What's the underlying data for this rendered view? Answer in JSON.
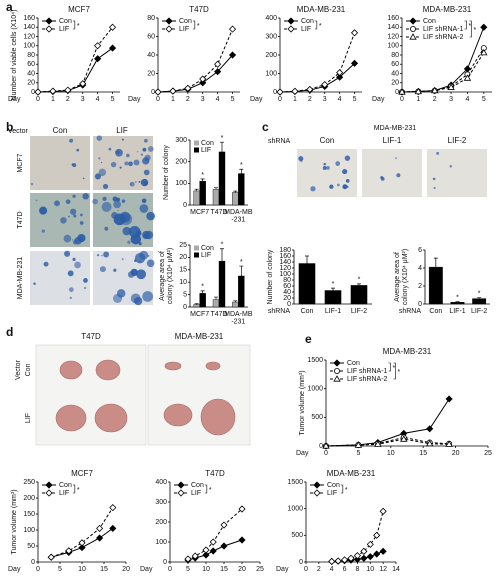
{
  "panel_labels": [
    "a",
    "b",
    "c",
    "d",
    "e"
  ],
  "photos_b": {
    "row_header": "Vector",
    "columns": [
      "Con",
      "LIF"
    ],
    "rows": [
      "MCF7",
      "T47D",
      "MDA-MB-231"
    ]
  },
  "photos_c": {
    "title": "MDA-MB-231",
    "row_header": "shRNA",
    "columns": [
      "Con",
      "LIF-1",
      "LIF-2"
    ]
  },
  "photos_d": {
    "columns": [
      "T47D",
      "MDA-MB-231"
    ],
    "group": "Vector",
    "rows": [
      "Con",
      "LIF"
    ]
  },
  "chart_data": [
    {
      "type": "line",
      "title": "MCF7",
      "y_label": "Number of viable cells (X10⁴)",
      "x_label": "Day",
      "x": [
        0,
        1,
        2,
        3,
        4,
        5
      ],
      "xlim": [
        0,
        5.5
      ],
      "xticks": [
        0,
        1,
        2,
        3,
        4,
        5
      ],
      "ylim": [
        0,
        160
      ],
      "yticks": [
        0,
        20,
        40,
        60,
        80,
        100,
        120,
        140,
        160
      ],
      "significance": [
        "*"
      ],
      "series": [
        {
          "name": "Con",
          "color": "#000000",
          "marker": "filled-diamond",
          "dashed": false,
          "values": [
            0,
            1,
            3,
            15,
            72,
            95
          ]
        },
        {
          "name": "LIF",
          "color": "#000000",
          "marker": "open-diamond",
          "dashed": true,
          "values": [
            0,
            2,
            4,
            18,
            100,
            140
          ]
        }
      ]
    },
    {
      "type": "line",
      "title": "T47D",
      "x_label": "Day",
      "x": [
        0,
        1,
        2,
        3,
        4,
        5
      ],
      "xlim": [
        0,
        5.5
      ],
      "xticks": [
        0,
        1,
        2,
        3,
        4,
        5
      ],
      "ylim": [
        0,
        80
      ],
      "yticks": [
        0,
        20,
        40,
        60,
        80
      ],
      "significance": [
        "*"
      ],
      "series": [
        {
          "name": "Con",
          "color": "#000000",
          "marker": "filled-diamond",
          "dashed": false,
          "values": [
            0,
            1,
            3,
            10,
            22,
            40
          ]
        },
        {
          "name": "LIF",
          "color": "#000000",
          "marker": "open-diamond",
          "dashed": true,
          "values": [
            0,
            1,
            4,
            14,
            30,
            68
          ]
        }
      ]
    },
    {
      "type": "line",
      "title": "MDA-MB-231",
      "x_label": "Day",
      "x": [
        0,
        1,
        2,
        3,
        4,
        5
      ],
      "xlim": [
        0,
        5.5
      ],
      "xticks": [
        0,
        1,
        2,
        3,
        4,
        5
      ],
      "ylim": [
        0,
        400
      ],
      "yticks": [
        0,
        100,
        200,
        300,
        400
      ],
      "significance": [
        "*"
      ],
      "series": [
        {
          "name": "Con",
          "color": "#000000",
          "marker": "filled-diamond",
          "dashed": false,
          "values": [
            0,
            3,
            10,
            30,
            80,
            155
          ]
        },
        {
          "name": "LIF",
          "color": "#000000",
          "marker": "open-diamond",
          "dashed": true,
          "values": [
            0,
            4,
            14,
            40,
            105,
            320
          ]
        }
      ]
    },
    {
      "type": "line",
      "title": "MDA-MB-231",
      "x_label": "Day",
      "x": [
        0,
        1,
        2,
        3,
        4,
        5
      ],
      "xlim": [
        0,
        5.5
      ],
      "xticks": [
        0,
        1,
        2,
        3,
        4,
        5
      ],
      "ylim": [
        0,
        160
      ],
      "yticks": [
        0,
        20,
        40,
        60,
        80,
        100,
        120,
        140,
        160
      ],
      "significance": [
        "*",
        "*"
      ],
      "series": [
        {
          "name": "Con",
          "color": "#000000",
          "marker": "filled-diamond",
          "dashed": false,
          "values": [
            0,
            1,
            3,
            15,
            50,
            140
          ]
        },
        {
          "name": "LIF shRNA-1",
          "color": "#000000",
          "marker": "open-circle",
          "dashed": true,
          "values": [
            0,
            1,
            3,
            12,
            38,
            95
          ]
        },
        {
          "name": "LIF shRNA-2",
          "color": "#000000",
          "marker": "open-triangle",
          "dashed": true,
          "values": [
            0,
            1,
            3,
            10,
            30,
            85
          ]
        }
      ]
    },
    {
      "type": "bar",
      "y_label": "Number of colony",
      "categories": [
        "MCF7",
        "T47D",
        "MDA-MB\n-231"
      ],
      "ylim": [
        0,
        300
      ],
      "yticks": [
        0,
        100,
        200,
        300
      ],
      "series": [
        {
          "name": "Con",
          "color": "#aaaaaa",
          "values": [
            65,
            72,
            58
          ],
          "errors": [
            8,
            8,
            6
          ]
        },
        {
          "name": "LIF",
          "color": "#000000",
          "values": [
            110,
            245,
            145
          ],
          "errors": [
            10,
            45,
            20
          ],
          "star_labels": [
            "*",
            "*",
            "*"
          ]
        }
      ]
    },
    {
      "type": "bar",
      "y_label": "Average area of\ncolony (X10⁴ μM²)",
      "categories": [
        "MCF7",
        "T47D",
        "MDA-MB\n-231"
      ],
      "ylim": [
        0,
        25
      ],
      "yticks": [
        0,
        5,
        10,
        15,
        20,
        25
      ],
      "series": [
        {
          "name": "Con",
          "color": "#aaaaaa",
          "values": [
            1,
            3,
            2
          ],
          "errors": [
            0.3,
            1,
            0.5
          ]
        },
        {
          "name": "LIF",
          "color": "#000000",
          "values": [
            5.5,
            18.5,
            12.5
          ],
          "errors": [
            1,
            5,
            4
          ],
          "star_labels": [
            "*",
            "*",
            "*"
          ]
        }
      ]
    },
    {
      "type": "bar",
      "y_label": "Number of colony",
      "x_label": "shRNA",
      "categories": [
        "Con",
        "LIF-1",
        "LIF-2"
      ],
      "ylim": [
        0,
        180
      ],
      "yticks": [
        0,
        20,
        40,
        60,
        80,
        100,
        120,
        140,
        160,
        180
      ],
      "series": [
        {
          "color": "#000000",
          "values": [
            135,
            45,
            62
          ],
          "errors": [
            25,
            8,
            5
          ],
          "star_labels": [
            null,
            "*",
            "*"
          ]
        }
      ]
    },
    {
      "type": "bar",
      "y_label": "Average area of\ncolony (X10⁴ μM²)",
      "x_label": "shRNA",
      "categories": [
        "Con",
        "LIF-1",
        "LIF-2"
      ],
      "ylim": [
        0,
        6
      ],
      "yticks": [
        0,
        2,
        4,
        6
      ],
      "series": [
        {
          "color": "#000000",
          "values": [
            4.1,
            0.2,
            0.6
          ],
          "errors": [
            1,
            0.05,
            0.1
          ],
          "star_labels": [
            null,
            "*",
            "*"
          ]
        }
      ]
    },
    {
      "type": "line",
      "title": "MCF7",
      "y_label": "Tumor volume (mm³)",
      "x_label": "Day",
      "x": [
        3,
        7,
        10,
        14,
        17
      ],
      "xlim": [
        0,
        20
      ],
      "xticks": [
        0,
        5,
        10,
        15,
        20
      ],
      "ylim": [
        0,
        250
      ],
      "yticks": [
        0,
        50,
        100,
        150,
        200,
        250
      ],
      "significance": [
        "*"
      ],
      "series": [
        {
          "name": "Con",
          "color": "#000000",
          "marker": "filled-diamond",
          "dashed": false,
          "values": [
            15,
            30,
            45,
            75,
            105
          ]
        },
        {
          "name": "LIF",
          "color": "#000000",
          "marker": "open-diamond",
          "dashed": true,
          "values": [
            15,
            35,
            60,
            105,
            170
          ]
        }
      ]
    },
    {
      "type": "line",
      "title": "T47D",
      "x_label": "Day",
      "x": [
        5,
        7,
        10,
        12,
        15,
        20
      ],
      "xlim": [
        0,
        25
      ],
      "xticks": [
        0,
        5,
        10,
        15,
        20,
        25
      ],
      "ylim": [
        0,
        400
      ],
      "yticks": [
        0,
        100,
        200,
        300,
        400
      ],
      "significance": [
        "*"
      ],
      "series": [
        {
          "name": "Con",
          "color": "#000000",
          "marker": "filled-diamond",
          "dashed": false,
          "values": [
            10,
            20,
            35,
            55,
            80,
            110
          ]
        },
        {
          "name": "LIF",
          "color": "#000000",
          "marker": "open-diamond",
          "dashed": true,
          "values": [
            15,
            30,
            60,
            100,
            185,
            265
          ]
        }
      ]
    },
    {
      "type": "line",
      "title": "MDA-MB-231",
      "x_label": "Day",
      "x": [
        4,
        5,
        6,
        7,
        8,
        9,
        10,
        11,
        12
      ],
      "xlim": [
        0,
        14
      ],
      "xticks": [
        0,
        2,
        4,
        6,
        8,
        10,
        12,
        14
      ],
      "ylim": [
        0,
        1500
      ],
      "yticks": [
        0,
        500,
        1000,
        1500
      ],
      "significance": [
        "*"
      ],
      "series": [
        {
          "name": "Con",
          "color": "#000000",
          "marker": "filled-diamond",
          "dashed": false,
          "values": [
            10,
            15,
            25,
            35,
            50,
            70,
            100,
            150,
            200
          ]
        },
        {
          "name": "LIF",
          "color": "#000000",
          "marker": "open-diamond",
          "dashed": true,
          "values": [
            10,
            20,
            40,
            70,
            120,
            200,
            330,
            500,
            950
          ]
        }
      ]
    },
    {
      "type": "line",
      "title": "MDA-MB-231",
      "y_label": "Tumor volume (mm³)",
      "x_label": "Day",
      "x": [
        0,
        5,
        8,
        12,
        16,
        19
      ],
      "xlim": [
        0,
        25
      ],
      "xticks": [
        0,
        5,
        10,
        15,
        20,
        25
      ],
      "ylim": [
        0,
        1500
      ],
      "yticks": [
        0,
        500,
        1000,
        1500
      ],
      "significance": [
        "*",
        "*"
      ],
      "series": [
        {
          "name": "Con",
          "color": "#000000",
          "marker": "filled-diamond",
          "dashed": false,
          "values": [
            0,
            20,
            60,
            220,
            300,
            820
          ]
        },
        {
          "name": "LIF shRNA-1",
          "color": "#000000",
          "marker": "open-circle",
          "dashed": true,
          "values": [
            0,
            20,
            40,
            150,
            60,
            40
          ]
        },
        {
          "name": "LIF shRNA-2",
          "color": "#000000",
          "marker": "open-triangle",
          "dashed": true,
          "values": [
            0,
            15,
            30,
            120,
            40,
            30
          ]
        }
      ]
    }
  ]
}
